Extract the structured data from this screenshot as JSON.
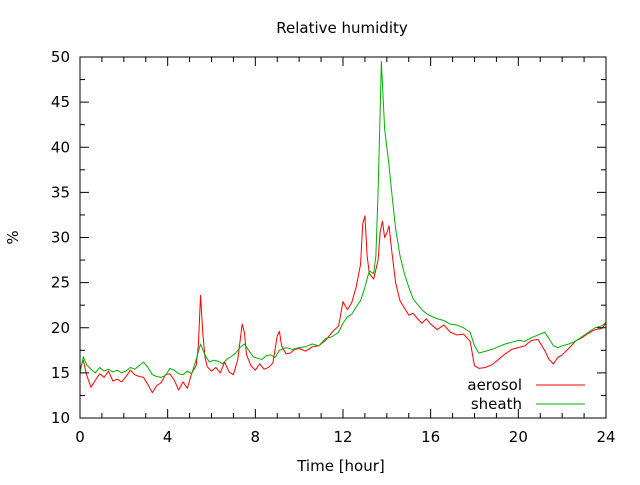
{
  "chart_data": {
    "type": "line",
    "title": "Relative humidity",
    "xlabel": "Time [hour]",
    "ylabel": "%",
    "xlim": [
      0,
      24
    ],
    "ylim": [
      10,
      50
    ],
    "xticks": [
      0,
      4,
      8,
      12,
      16,
      20,
      24
    ],
    "yticks": [
      10,
      15,
      20,
      25,
      30,
      35,
      40,
      45,
      50
    ],
    "x_minor_step": 1,
    "y_minor_step": 2.5,
    "grid": false,
    "legend_position": "bottom-right",
    "series": [
      {
        "name": "aerosol",
        "color": "#ff0000",
        "x": [
          0,
          0.15,
          0.3,
          0.5,
          0.7,
          0.9,
          1.1,
          1.3,
          1.5,
          1.7,
          1.9,
          2.1,
          2.3,
          2.5,
          2.7,
          2.9,
          3.1,
          3.3,
          3.5,
          3.7,
          3.9,
          4.1,
          4.3,
          4.5,
          4.7,
          4.9,
          5.1,
          5.3,
          5.4,
          5.5,
          5.6,
          5.7,
          5.8,
          6.0,
          6.2,
          6.4,
          6.6,
          6.8,
          7.0,
          7.2,
          7.4,
          7.5,
          7.6,
          7.8,
          8.0,
          8.2,
          8.4,
          8.6,
          8.8,
          9.0,
          9.1,
          9.2,
          9.4,
          9.6,
          9.8,
          10.0,
          10.3,
          10.6,
          10.9,
          11.2,
          11.5,
          11.8,
          12.0,
          12.2,
          12.4,
          12.6,
          12.8,
          12.9,
          13.0,
          13.1,
          13.2,
          13.4,
          13.6,
          13.7,
          13.8,
          13.9,
          14.0,
          14.1,
          14.2,
          14.4,
          14.6,
          14.8,
          15.0,
          15.2,
          15.4,
          15.6,
          15.8,
          16.0,
          16.3,
          16.6,
          16.9,
          17.2,
          17.5,
          17.8,
          18.0,
          18.2,
          18.5,
          18.8,
          19.1,
          19.4,
          19.7,
          20.0,
          20.3,
          20.6,
          20.9,
          21.2,
          21.4,
          21.6,
          21.8,
          22.0,
          22.3,
          22.6,
          22.9,
          23.2,
          23.5,
          23.8,
          24.0
        ],
        "values": [
          15.5,
          16.4,
          14.8,
          13.4,
          14.2,
          14.9,
          14.5,
          15.2,
          14.1,
          14.3,
          14.0,
          14.6,
          15.3,
          14.8,
          14.6,
          14.5,
          13.7,
          12.8,
          13.6,
          13.9,
          14.8,
          14.9,
          14.2,
          13.1,
          14.0,
          13.3,
          15.0,
          15.8,
          18.0,
          23.6,
          19.5,
          16.8,
          15.7,
          15.2,
          15.6,
          15.0,
          16.2,
          15.1,
          14.8,
          16.5,
          20.4,
          19.5,
          17.0,
          15.8,
          15.3,
          16.0,
          15.4,
          15.6,
          16.1,
          19.1,
          19.6,
          18.0,
          17.1,
          17.2,
          17.6,
          17.7,
          17.4,
          17.9,
          18.0,
          18.6,
          19.5,
          20.2,
          22.9,
          22.0,
          22.8,
          24.5,
          27.0,
          31.5,
          32.4,
          28.0,
          26.0,
          25.4,
          27.5,
          30.7,
          31.8,
          30.0,
          30.5,
          31.3,
          29.0,
          25.0,
          23.0,
          22.2,
          21.4,
          21.6,
          21.0,
          20.5,
          21.0,
          20.4,
          19.8,
          20.3,
          19.5,
          19.2,
          19.3,
          18.5,
          15.8,
          15.5,
          15.6,
          15.9,
          16.5,
          17.1,
          17.6,
          17.8,
          18.0,
          18.6,
          18.7,
          17.5,
          16.5,
          16.0,
          16.7,
          17.0,
          17.7,
          18.5,
          18.9,
          19.4,
          19.8,
          19.9,
          20.5
        ]
      },
      {
        "name": "sheath",
        "color": "#00b000",
        "x": [
          0,
          0.15,
          0.3,
          0.5,
          0.7,
          0.9,
          1.1,
          1.3,
          1.5,
          1.7,
          1.9,
          2.1,
          2.3,
          2.5,
          2.7,
          2.9,
          3.1,
          3.3,
          3.5,
          3.7,
          3.9,
          4.1,
          4.3,
          4.5,
          4.7,
          4.9,
          5.1,
          5.3,
          5.5,
          5.7,
          5.9,
          6.1,
          6.3,
          6.5,
          6.7,
          6.9,
          7.1,
          7.3,
          7.5,
          7.7,
          7.9,
          8.1,
          8.3,
          8.5,
          8.7,
          8.9,
          9.1,
          9.4,
          9.7,
          10.0,
          10.3,
          10.6,
          10.9,
          11.2,
          11.5,
          11.8,
          12.0,
          12.2,
          12.4,
          12.6,
          12.8,
          13.0,
          13.2,
          13.4,
          13.5,
          13.6,
          13.7,
          13.75,
          13.8,
          13.9,
          14.0,
          14.1,
          14.2,
          14.4,
          14.6,
          14.8,
          15.0,
          15.2,
          15.4,
          15.6,
          15.8,
          16.0,
          16.3,
          16.6,
          16.9,
          17.2,
          17.5,
          17.8,
          18.0,
          18.2,
          18.5,
          18.8,
          19.1,
          19.4,
          19.7,
          20.0,
          20.3,
          20.6,
          20.9,
          21.2,
          21.4,
          21.6,
          21.8,
          22.0,
          22.3,
          22.6,
          22.9,
          23.2,
          23.5,
          23.8,
          24.0
        ],
        "values": [
          15.0,
          16.8,
          15.9,
          15.4,
          15.0,
          15.6,
          15.2,
          15.4,
          15.1,
          15.3,
          15.0,
          15.2,
          15.6,
          15.4,
          15.8,
          16.2,
          15.6,
          14.8,
          14.6,
          14.5,
          14.7,
          15.5,
          15.3,
          14.9,
          14.8,
          15.2,
          14.9,
          16.5,
          18.2,
          17.0,
          16.2,
          16.4,
          16.3,
          16.0,
          16.5,
          16.8,
          17.2,
          17.8,
          18.2,
          17.5,
          16.8,
          16.6,
          16.5,
          16.9,
          17.0,
          16.7,
          17.5,
          17.8,
          17.6,
          17.8,
          17.9,
          18.2,
          18.0,
          18.8,
          19.0,
          19.5,
          20.5,
          21.2,
          21.5,
          22.3,
          23.0,
          24.5,
          26.3,
          26.0,
          28.0,
          35.0,
          44.5,
          49.5,
          47.0,
          42.0,
          40.0,
          38.0,
          35.5,
          31.0,
          28.0,
          26.0,
          24.5,
          23.2,
          22.6,
          22.0,
          21.6,
          21.3,
          21.0,
          20.8,
          20.4,
          20.3,
          20.0,
          19.5,
          18.0,
          17.2,
          17.4,
          17.6,
          17.9,
          18.2,
          18.4,
          18.6,
          18.5,
          18.9,
          19.2,
          19.5,
          18.8,
          18.0,
          17.8,
          18.0,
          18.2,
          18.5,
          19.0,
          19.5,
          20.0,
          20.2,
          20.6
        ]
      }
    ]
  }
}
